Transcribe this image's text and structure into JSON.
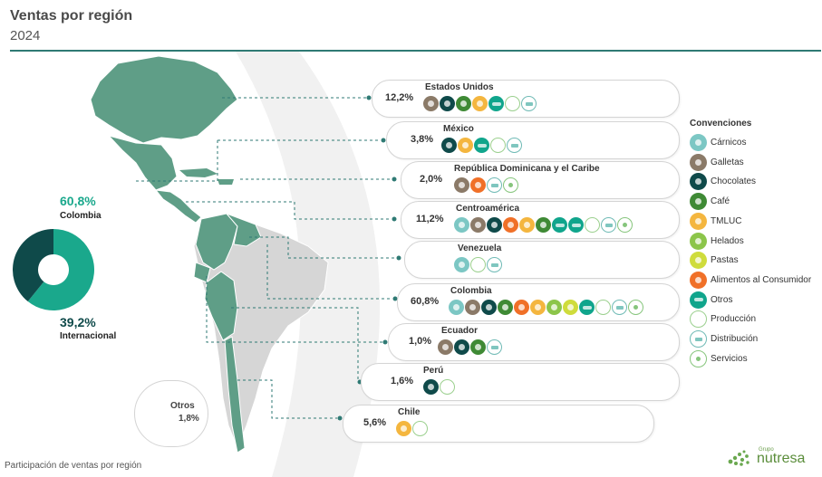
{
  "header": {
    "title": "Ventas por región",
    "year": "2024"
  },
  "donut": {
    "colombia": {
      "value": "60,8%",
      "label": "Colombia",
      "fraction": 0.608,
      "color": "#1aa88c"
    },
    "internacional": {
      "value": "39,2%",
      "label": "Internacional",
      "fraction": 0.392,
      "color": "#0f4a4a"
    }
  },
  "regions": [
    {
      "name": "Estados Unidos",
      "pct": "12,2%",
      "icons": [
        "galletas",
        "chocolates",
        "cafe",
        "tmluc",
        "otros",
        "produccion",
        "distribucion"
      ]
    },
    {
      "name": "México",
      "pct": "3,8%",
      "icons": [
        "chocolates",
        "tmluc",
        "otros",
        "produccion",
        "distribucion"
      ]
    },
    {
      "name": "República Dominicana y el Caribe",
      "pct": "2,0%",
      "icons": [
        "galletas",
        "alimentos",
        "distribucion",
        "servicios"
      ]
    },
    {
      "name": "Centroamérica",
      "pct": "11,2%",
      "icons": [
        "carnicos",
        "galletas",
        "chocolates",
        "alimentos",
        "tmluc",
        "cafe",
        "otros",
        "otros",
        "produccion",
        "distribucion",
        "servicios"
      ]
    },
    {
      "name": "Venezuela",
      "pct": "",
      "icons": [
        "carnicos",
        "produccion",
        "distribucion"
      ]
    },
    {
      "name": "Colombia",
      "pct": "60,8%",
      "icons": [
        "carnicos",
        "galletas",
        "chocolates",
        "cafe",
        "alimentos",
        "tmluc",
        "helados",
        "pastas",
        "otros",
        "produccion",
        "distribucion",
        "servicios"
      ]
    },
    {
      "name": "Ecuador",
      "pct": "1,0%",
      "icons": [
        "galletas",
        "chocolates",
        "cafe",
        "distribucion"
      ]
    },
    {
      "name": "Perú",
      "pct": "1,6%",
      "icons": [
        "chocolates",
        "produccion"
      ]
    },
    {
      "name": "Chile",
      "pct": "5,6%",
      "icons": [
        "tmluc",
        "produccion"
      ]
    }
  ],
  "otros": {
    "label": "Otros",
    "value": "1,8%"
  },
  "conventions": {
    "title": "Convenciones",
    "items": [
      {
        "key": "carnicos",
        "label": "Cárnicos"
      },
      {
        "key": "galletas",
        "label": "Galletas"
      },
      {
        "key": "chocolates",
        "label": "Chocolates"
      },
      {
        "key": "cafe",
        "label": "Café"
      },
      {
        "key": "tmluc",
        "label": "TMLUC"
      },
      {
        "key": "helados",
        "label": "Helados"
      },
      {
        "key": "pastas",
        "label": "Pastas"
      },
      {
        "key": "alimentos",
        "label": "Alimentos al Consumidor"
      },
      {
        "key": "otros",
        "label": "Otros"
      },
      {
        "key": "produccion",
        "label": "Producción"
      },
      {
        "key": "distribucion",
        "label": "Distribución"
      },
      {
        "key": "servicios",
        "label": "Servicios"
      }
    ]
  },
  "footer": {
    "caption": "Participación de ventas por región"
  },
  "logo": {
    "small": "Grupo",
    "brand": "nutresa"
  }
}
